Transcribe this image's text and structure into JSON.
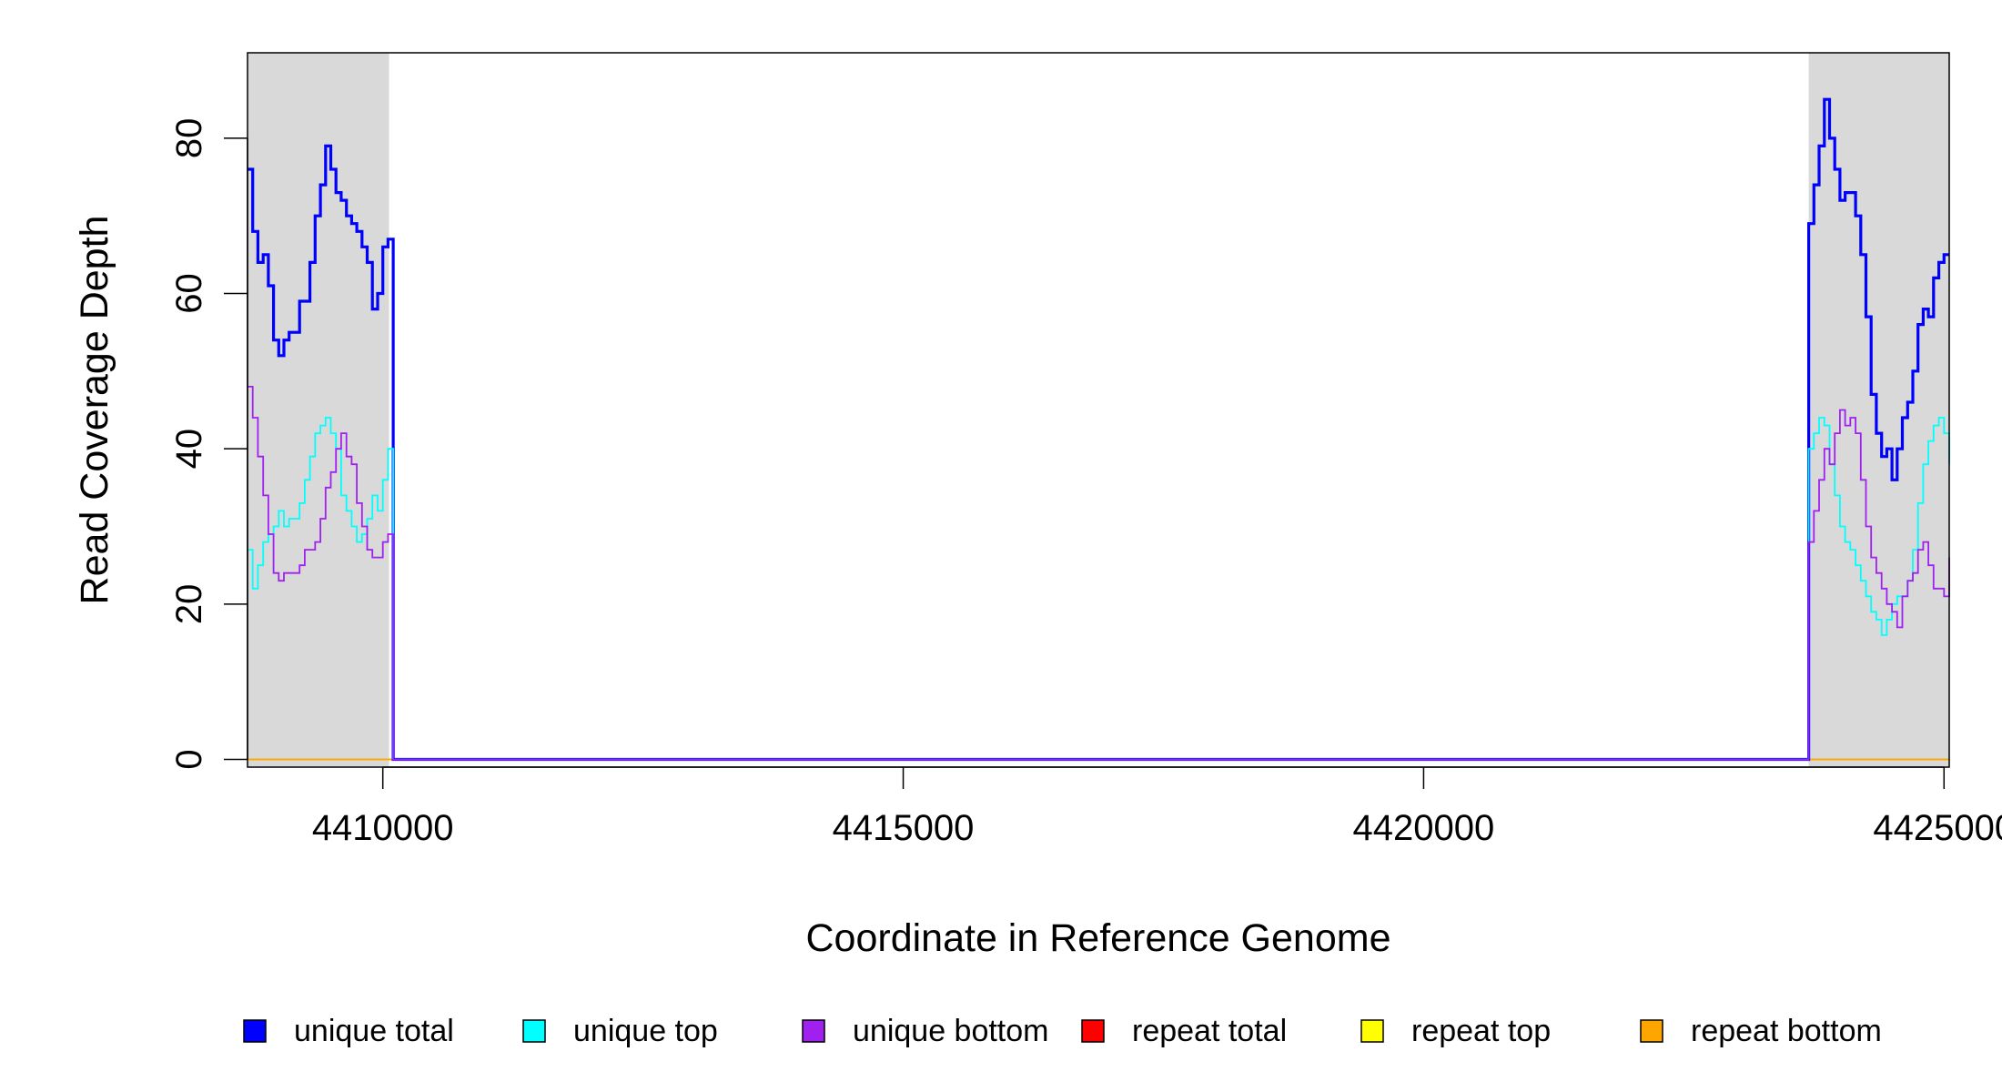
{
  "chart_data": {
    "type": "line",
    "xlabel": "Coordinate in Reference Genome",
    "ylabel": "Read Coverage Depth",
    "xlim": [
      4408700,
      4425050
    ],
    "ylim": [
      -1,
      91
    ],
    "x_ticks": [
      4410000,
      4415000,
      4420000,
      4425000
    ],
    "x_tick_labels": [
      "4410000",
      "4415000",
      "4420000",
      "4425000"
    ],
    "y_ticks": [
      0,
      20,
      40,
      60,
      80
    ],
    "y_tick_labels": [
      "0",
      "20",
      "40",
      "60",
      "80"
    ],
    "shaded_regions": [
      {
        "x0": 4408700,
        "x1": 4410060,
        "color": "#d9d9d9"
      },
      {
        "x0": 4423700,
        "x1": 4425050,
        "color": "#d9d9d9"
      }
    ],
    "grid": false,
    "legend_position": "bottom",
    "series": [
      {
        "name": "unique total",
        "color": "#0000ff",
        "width": 3.2,
        "x": [
          4408700,
          4408750,
          4408800,
          4408850,
          4408900,
          4408950,
          4409000,
          4409050,
          4409100,
          4409150,
          4409200,
          4409250,
          4409300,
          4409350,
          4409400,
          4409450,
          4409500,
          4409550,
          4409600,
          4409650,
          4409700,
          4409750,
          4409800,
          4409850,
          4409900,
          4409950,
          4410000,
          4410050,
          4410100,
          4410120,
          4423700,
          4423750,
          4423800,
          4423850,
          4423900,
          4423950,
          4424000,
          4424050,
          4424100,
          4424150,
          4424200,
          4424250,
          4424300,
          4424350,
          4424400,
          4424450,
          4424500,
          4424550,
          4424600,
          4424650,
          4424700,
          4424750,
          4424800,
          4424850,
          4424900,
          4424950,
          4425000,
          4425050
        ],
        "values": [
          76,
          68,
          64,
          65,
          61,
          54,
          52,
          54,
          55,
          55,
          59,
          59,
          64,
          70,
          74,
          79,
          76,
          73,
          72,
          70,
          69,
          68,
          66,
          64,
          58,
          60,
          66,
          67,
          0,
          0,
          69,
          74,
          79,
          85,
          80,
          76,
          72,
          73,
          73,
          70,
          65,
          57,
          47,
          42,
          39,
          40,
          36,
          40,
          44,
          46,
          50,
          56,
          58,
          57,
          62,
          64,
          65,
          65
        ]
      },
      {
        "name": "unique top",
        "color": "#00ffff",
        "width": 1.8,
        "x": [
          4408700,
          4408750,
          4408800,
          4408850,
          4408900,
          4408950,
          4409000,
          4409050,
          4409100,
          4409150,
          4409200,
          4409250,
          4409300,
          4409350,
          4409400,
          4409450,
          4409500,
          4409550,
          4409600,
          4409650,
          4409700,
          4409750,
          4409800,
          4409850,
          4409900,
          4409950,
          4410000,
          4410050,
          4410100,
          4410120,
          4423700,
          4423750,
          4423800,
          4423850,
          4423900,
          4423950,
          4424000,
          4424050,
          4424100,
          4424150,
          4424200,
          4424250,
          4424300,
          4424350,
          4424400,
          4424450,
          4424500,
          4424550,
          4424600,
          4424650,
          4424700,
          4424750,
          4424800,
          4424850,
          4424900,
          4424950,
          4425000,
          4425050
        ],
        "values": [
          27,
          22,
          25,
          28,
          29,
          30,
          32,
          30,
          31,
          31,
          33,
          36,
          39,
          42,
          43,
          44,
          42,
          40,
          34,
          32,
          30,
          28,
          29,
          31,
          34,
          32,
          36,
          40,
          0,
          0,
          40,
          42,
          44,
          43,
          38,
          34,
          30,
          28,
          27,
          25,
          23,
          21,
          19,
          18,
          16,
          18,
          20,
          21,
          21,
          23,
          27,
          33,
          38,
          41,
          43,
          44,
          42,
          38
        ]
      },
      {
        "name": "unique bottom",
        "color": "#a020f0",
        "width": 1.8,
        "x": [
          4408700,
          4408750,
          4408800,
          4408850,
          4408900,
          4408950,
          4409000,
          4409050,
          4409100,
          4409150,
          4409200,
          4409250,
          4409300,
          4409350,
          4409400,
          4409450,
          4409500,
          4409550,
          4409600,
          4409650,
          4409700,
          4409750,
          4409800,
          4409850,
          4409900,
          4409950,
          4410000,
          4410050,
          4410100,
          4410120,
          4423700,
          4423750,
          4423800,
          4423850,
          4423900,
          4423950,
          4424000,
          4424050,
          4424100,
          4424150,
          4424200,
          4424250,
          4424300,
          4424350,
          4424400,
          4424450,
          4424500,
          4424550,
          4424600,
          4424650,
          4424700,
          4424750,
          4424800,
          4424850,
          4424900,
          4424950,
          4425000,
          4425050
        ],
        "values": [
          48,
          44,
          39,
          34,
          29,
          24,
          23,
          24,
          24,
          24,
          25,
          27,
          27,
          28,
          31,
          35,
          37,
          40,
          42,
          39,
          38,
          33,
          30,
          27,
          26,
          26,
          28,
          29,
          0,
          0,
          28,
          32,
          36,
          40,
          38,
          42,
          45,
          43,
          44,
          42,
          36,
          30,
          26,
          24,
          22,
          20,
          19,
          17,
          21,
          23,
          24,
          27,
          28,
          25,
          22,
          22,
          21,
          26
        ]
      },
      {
        "name": "repeat total",
        "color": "#ff0000",
        "width": 1.8,
        "x": [
          4408700,
          4425050
        ],
        "values": [
          0,
          0
        ]
      },
      {
        "name": "repeat top",
        "color": "#ffff00",
        "width": 1.8,
        "x": [
          4408700,
          4425050
        ],
        "values": [
          0,
          0
        ]
      },
      {
        "name": "repeat bottom",
        "color": "#ffa500",
        "width": 1.8,
        "x": [
          4408700,
          4425050
        ],
        "values": [
          0,
          0
        ]
      }
    ]
  }
}
